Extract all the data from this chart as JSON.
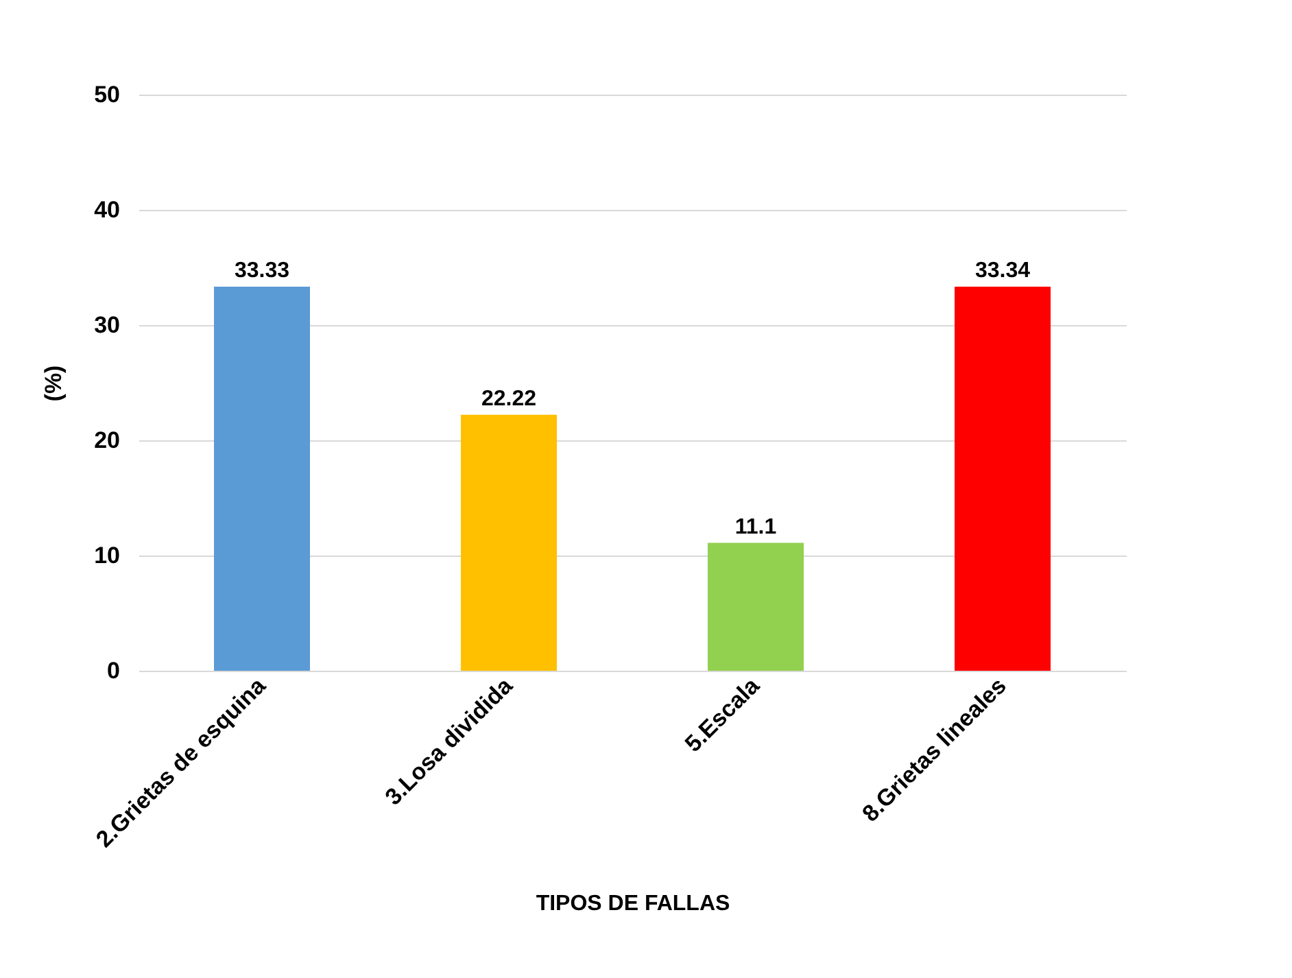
{
  "chart_data": {
    "type": "bar",
    "xlabel": "TIPOS DE FALLAS",
    "ylabel": "(%)",
    "categories": [
      "2.Grietas de esquina",
      "3.Losa dividida",
      "5.Escala",
      "8.Grietas lineales"
    ],
    "values": [
      33.33,
      22.22,
      11.1,
      33.34
    ],
    "colors": [
      "#5b9bd5",
      "#ffc000",
      "#92d050",
      "#ff0000"
    ],
    "ylim": [
      0,
      50
    ],
    "yticks": [
      0,
      10,
      20,
      30,
      40,
      50
    ],
    "grid": "y",
    "data_labels": true
  }
}
